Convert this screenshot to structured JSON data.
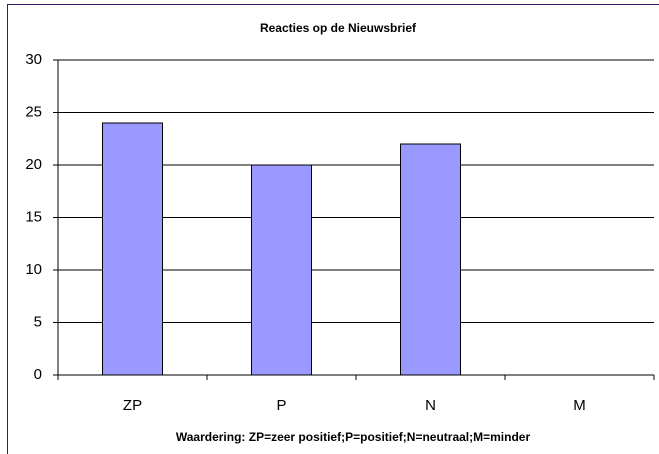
{
  "chart_data": {
    "type": "bar",
    "title": "Reacties op de Nieuwsbrief",
    "x_label": "Waardering: ZP=zeer positief;P=positief;N=neutraal;M=minder",
    "categories": [
      "ZP",
      "P",
      "N",
      "M"
    ],
    "values": [
      24,
      20,
      22,
      0
    ],
    "color": "#9999ff",
    "ylim": [
      0,
      30
    ],
    "yticks": [
      0,
      5,
      10,
      15,
      20,
      25,
      30
    ],
    "grid": true
  }
}
